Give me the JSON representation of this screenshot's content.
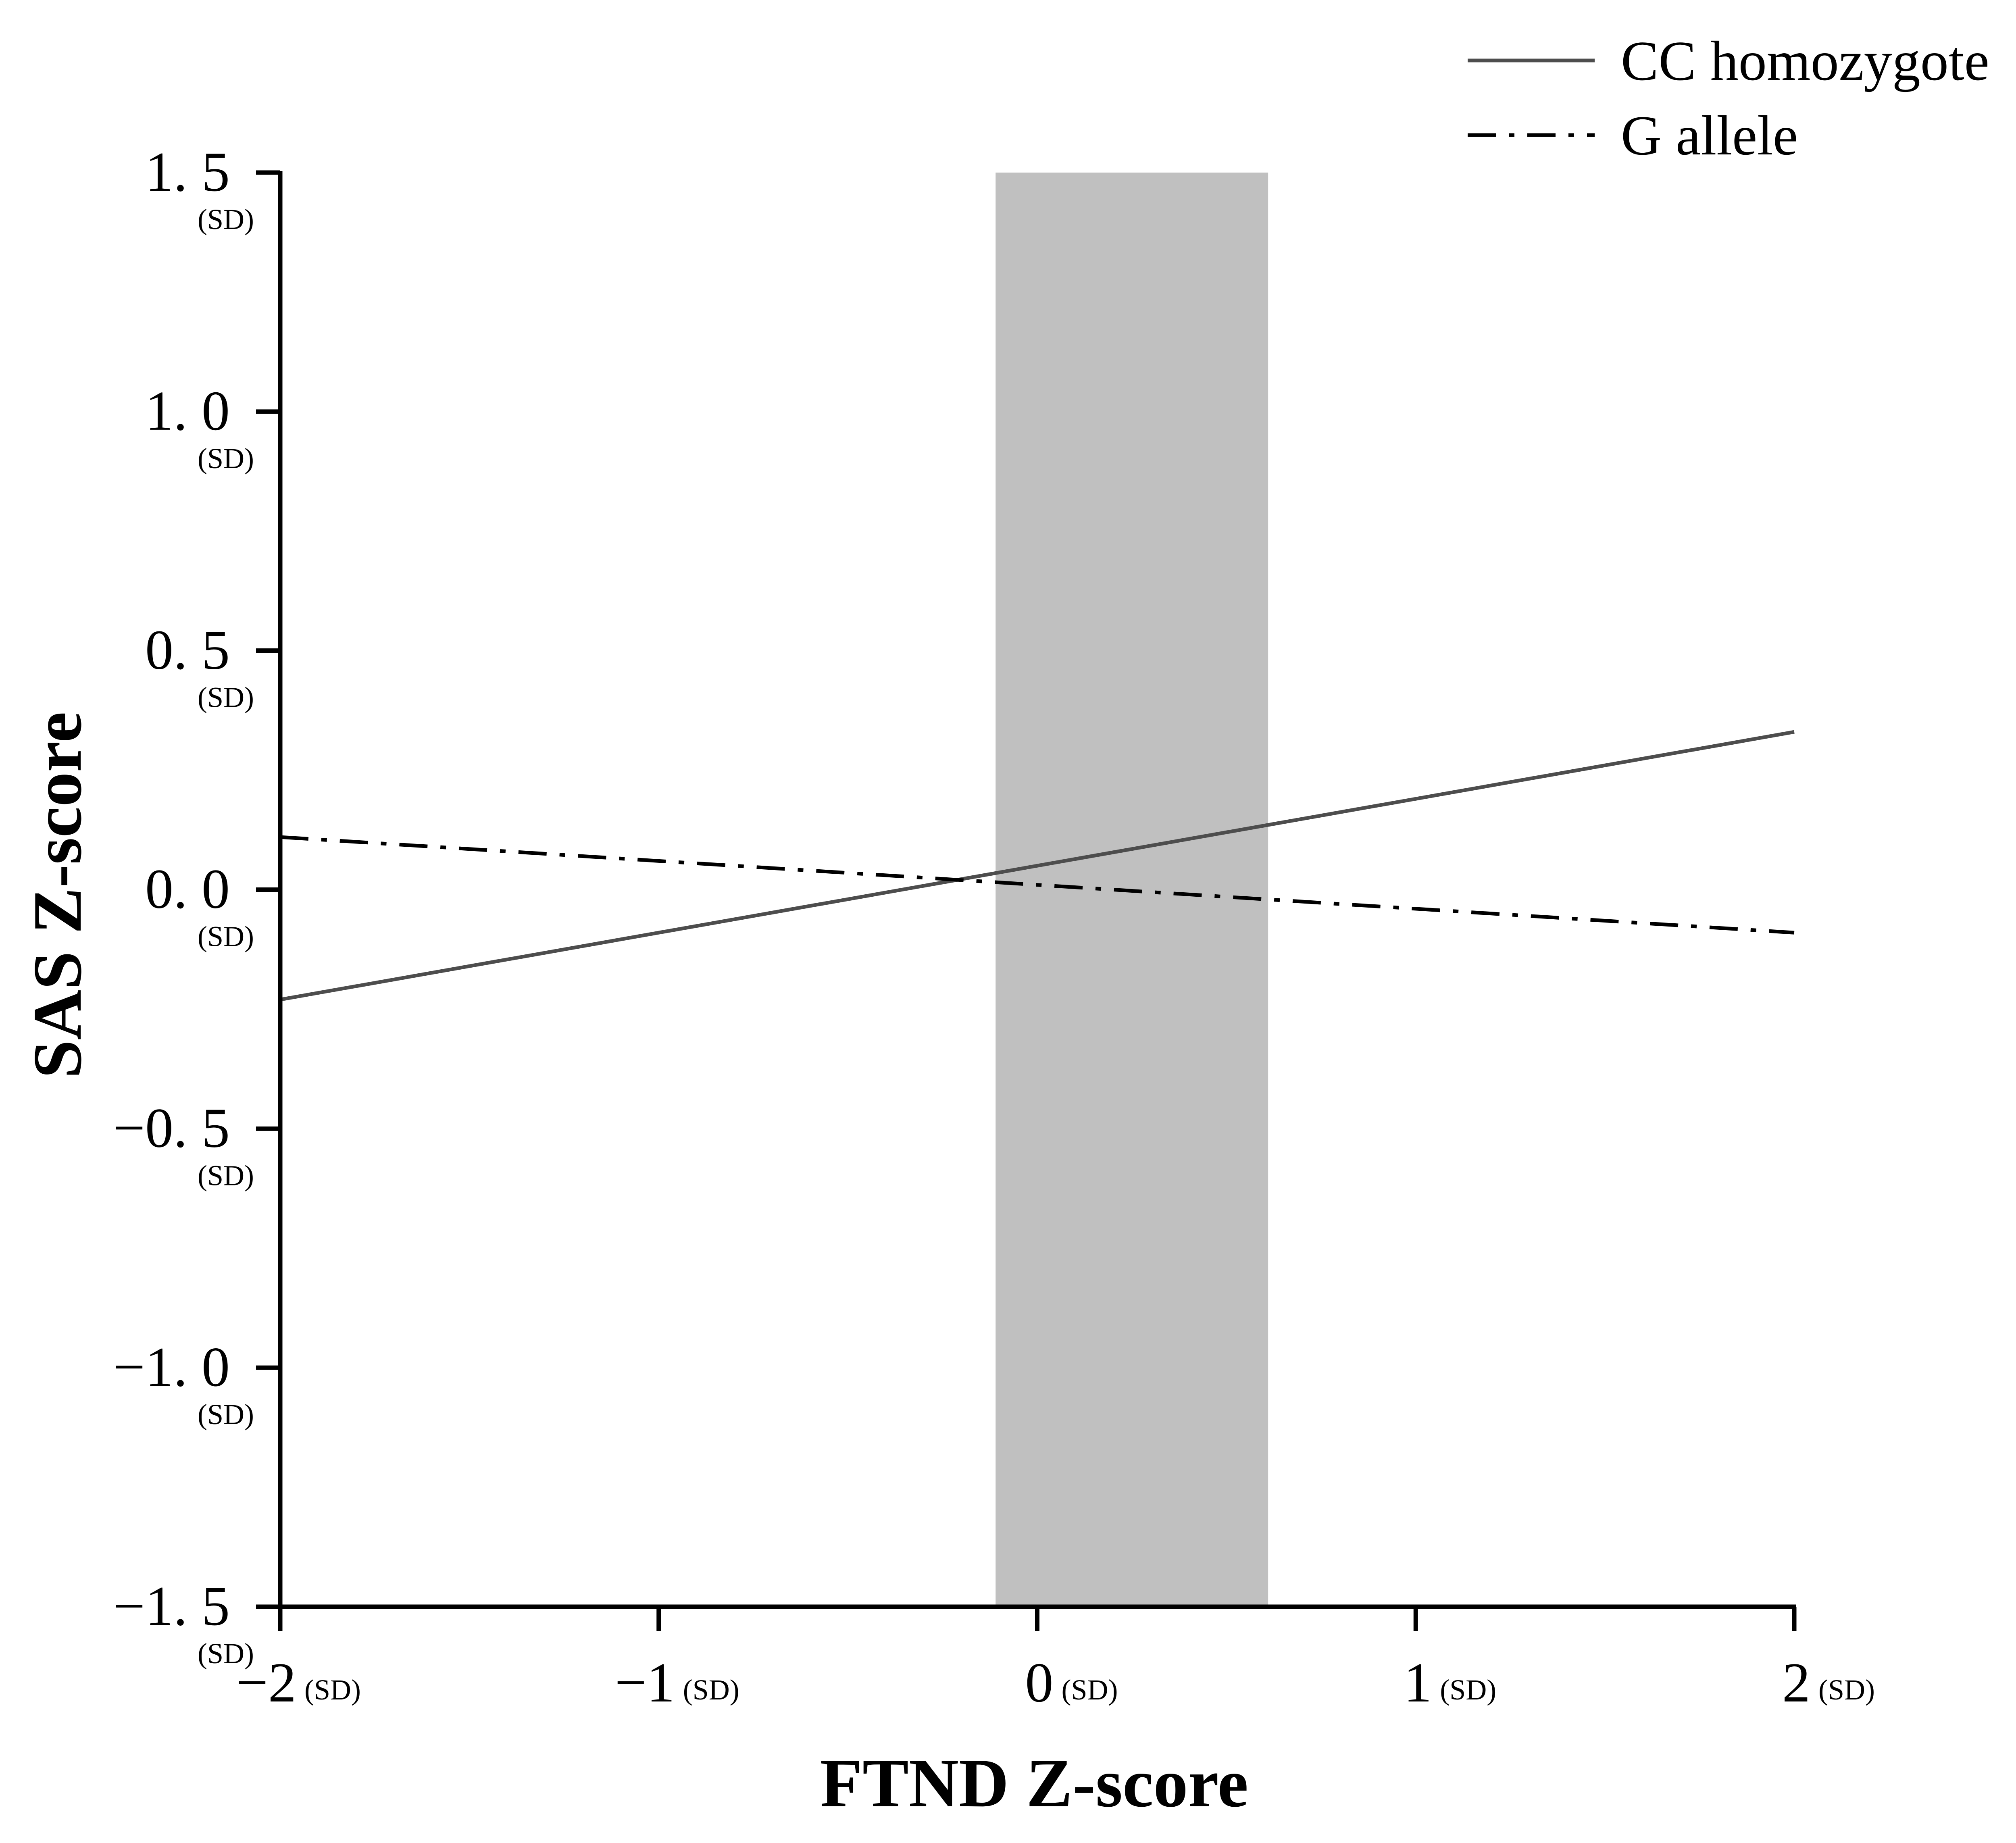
{
  "chart_data": {
    "type": "line",
    "title": "",
    "xlabel": "FTND Z-score",
    "ylabel": "SAS Z-score",
    "xlim": [
      -2,
      2
    ],
    "ylim": [
      -1.5,
      1.5
    ],
    "grid": false,
    "legend_position": "top-right",
    "x_ticks": [
      {
        "value": -2,
        "label": "−2",
        "unit": "(SD)"
      },
      {
        "value": -1,
        "label": "−1",
        "unit": "(SD)"
      },
      {
        "value": 0,
        "label": "0",
        "unit": "(SD)"
      },
      {
        "value": 1,
        "label": "1",
        "unit": "(SD)"
      },
      {
        "value": 2,
        "label": "2",
        "unit": "(SD)"
      }
    ],
    "y_ticks": [
      {
        "value": 1.5,
        "label": "1. 5",
        "unit": "(SD)"
      },
      {
        "value": 1.0,
        "label": "1. 0",
        "unit": "(SD)"
      },
      {
        "value": 0.5,
        "label": "0. 5",
        "unit": "(SD)"
      },
      {
        "value": 0.0,
        "label": "0. 0",
        "unit": "(SD)"
      },
      {
        "value": -0.5,
        "label": "−0. 5",
        "unit": "(SD)"
      },
      {
        "value": -1.0,
        "label": "−1. 0",
        "unit": "(SD)"
      },
      {
        "value": -1.5,
        "label": "−1. 5",
        "unit": "(SD)"
      }
    ],
    "shaded_region": {
      "x_start": -0.11,
      "x_end": 0.61,
      "color": "#c0c0c0"
    },
    "series": [
      {
        "name": "CC homozygote",
        "x": [
          -2,
          2
        ],
        "y": [
          -0.23,
          0.33
        ],
        "color": "#4d4d4d",
        "style": "solid"
      },
      {
        "name": "G allele",
        "x": [
          -2,
          2
        ],
        "y": [
          0.11,
          -0.09
        ],
        "color": "#000000",
        "style": "dashdot"
      }
    ]
  }
}
